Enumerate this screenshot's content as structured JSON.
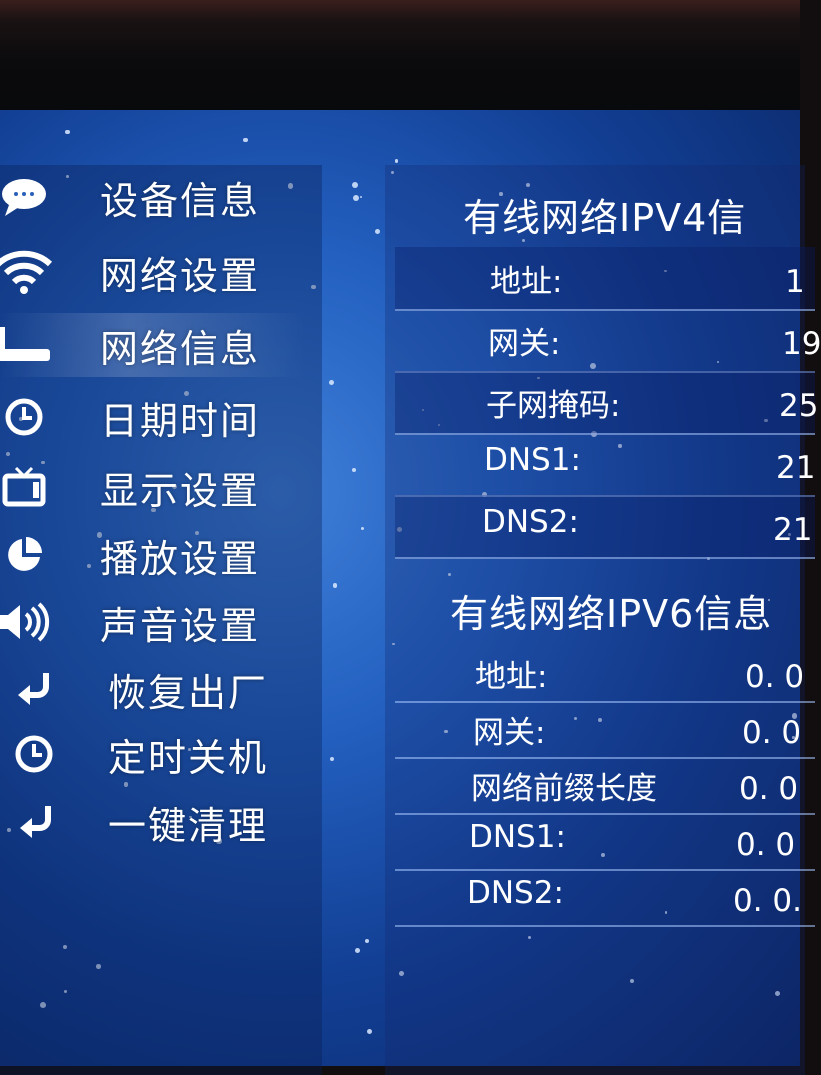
{
  "sidebar": {
    "items": [
      {
        "label": "设备信息",
        "icon": "chat-bubble-icon"
      },
      {
        "label": "网络设置",
        "icon": "wifi-icon"
      },
      {
        "label": "网络信息",
        "icon": "router-icon",
        "selected": true
      },
      {
        "label": "日期时间",
        "icon": "clock-icon"
      },
      {
        "label": "显示设置",
        "icon": "tv-icon"
      },
      {
        "label": "播放设置",
        "icon": "pie-chart-icon"
      },
      {
        "label": "声音设置",
        "icon": "speaker-icon"
      },
      {
        "label": "恢复出厂",
        "icon": "return-arrow-icon"
      },
      {
        "label": "定时关机",
        "icon": "clock-icon"
      },
      {
        "label": "一键清理",
        "icon": "return-arrow-icon"
      }
    ]
  },
  "ipv4": {
    "title": "有线网络IPV4信",
    "rows": [
      {
        "label": "地址:",
        "value": "1"
      },
      {
        "label": "网关:",
        "value": "19"
      },
      {
        "label": "子网掩码:",
        "value": "25"
      },
      {
        "label": "DNS1:",
        "value": "21"
      },
      {
        "label": "DNS2:",
        "value": "21"
      }
    ]
  },
  "ipv6": {
    "title": "有线网络IPV6信息",
    "rows": [
      {
        "label": "地址:",
        "value": "0. 0"
      },
      {
        "label": "网关:",
        "value": "0. 0"
      },
      {
        "label": "网络前缀长度",
        "value": "0. 0"
      },
      {
        "label": "DNS1:",
        "value": "0. 0"
      },
      {
        "label": "DNS2:",
        "value": "0. 0."
      }
    ]
  },
  "colors": {
    "background": "#2360c0",
    "text": "#ffffff",
    "divider": "#aac8ff"
  }
}
